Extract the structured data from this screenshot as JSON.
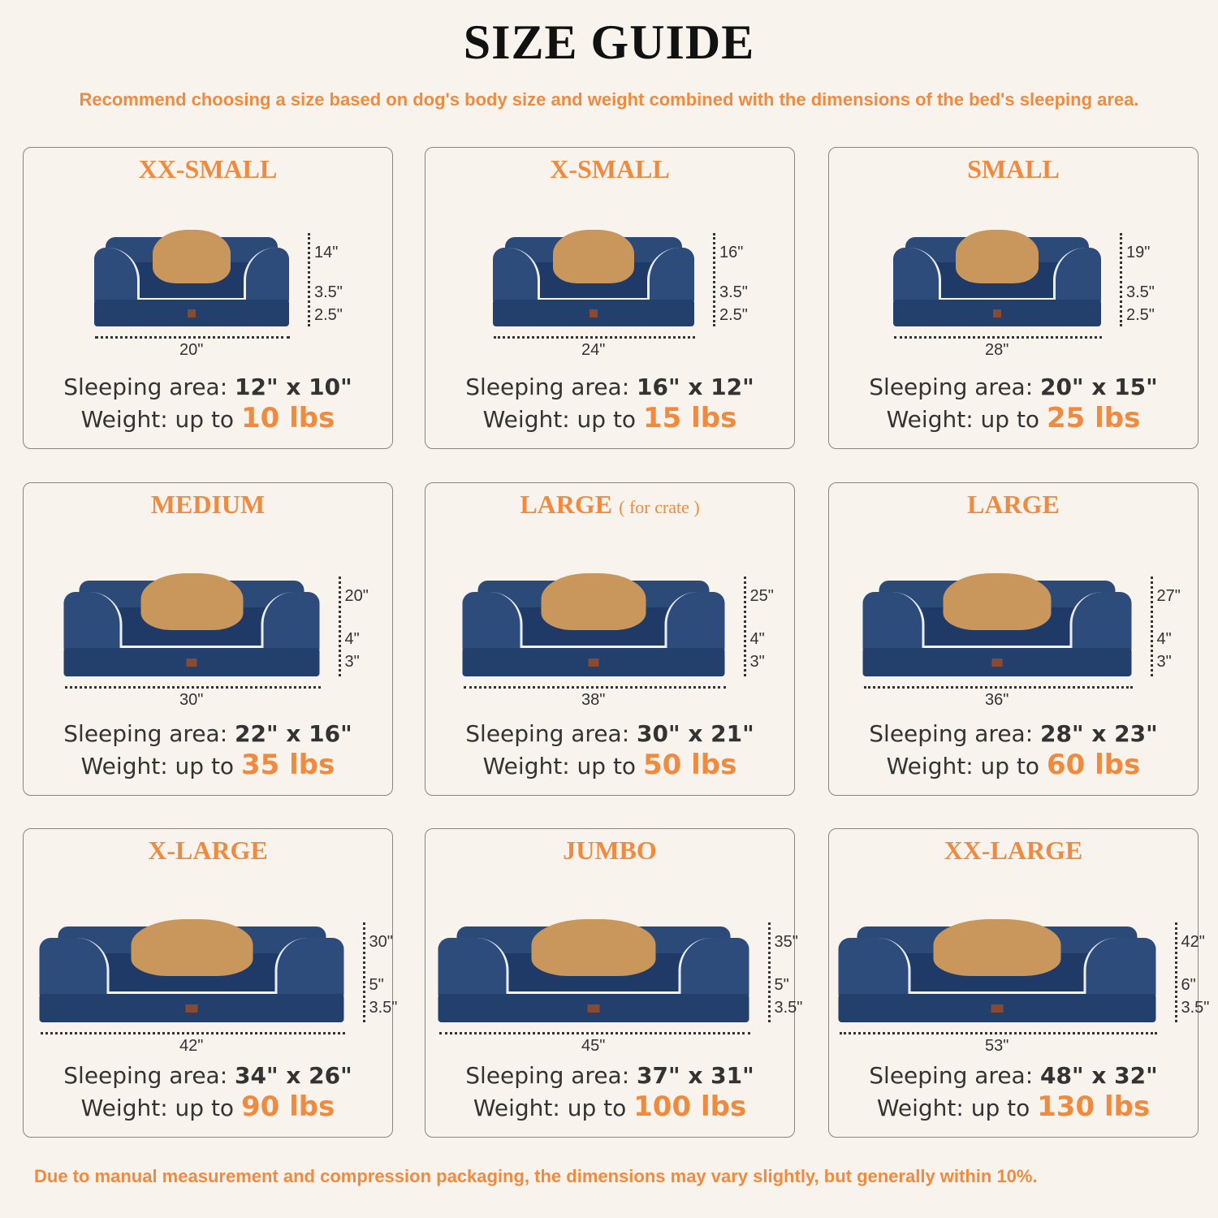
{
  "title": "SIZE GUIDE",
  "subtitle": "Recommend choosing a size based on dog's body size and weight combined with the dimensions of the bed's sleeping area.",
  "footer": "Due to manual measurement and compression packaging, the dimensions may vary slightly, but generally within 10%.",
  "colors": {
    "background": "#f9f3ee",
    "accent": "#ef8a3e",
    "bed": "#24406d"
  },
  "sleeping_label": "Sleeping area:",
  "weight_label": "Weight: up to",
  "cards": [
    {
      "title": "XX-SMALL",
      "note": "",
      "depth": "14\"",
      "bolster": "3.5\"",
      "base": "2.5\"",
      "width": "20\"",
      "sleeping": "12\" x 10\"",
      "weight": "10 lbs"
    },
    {
      "title": "X-SMALL",
      "note": "",
      "depth": "16\"",
      "bolster": "3.5\"",
      "base": "2.5\"",
      "width": "24\"",
      "sleeping": "16\" x 12\"",
      "weight": "15 lbs"
    },
    {
      "title": "SMALL",
      "note": "",
      "depth": "19\"",
      "bolster": "3.5\"",
      "base": "2.5\"",
      "width": "28\"",
      "sleeping": "20\" x 15\"",
      "weight": "25 lbs"
    },
    {
      "title": "MEDIUM",
      "note": "",
      "depth": "20\"",
      "bolster": "4\"",
      "base": "3\"",
      "width": "30\"",
      "sleeping": "22\" x 16\"",
      "weight": "35 lbs"
    },
    {
      "title": "LARGE",
      "note": "( for crate )",
      "depth": "25\"",
      "bolster": "4\"",
      "base": "3\"",
      "width": "38\"",
      "sleeping": "30\" x 21\"",
      "weight": "50 lbs"
    },
    {
      "title": "LARGE",
      "note": "",
      "depth": "27\"",
      "bolster": "4\"",
      "base": "3\"",
      "width": "36\"",
      "sleeping": "28\" x 23\"",
      "weight": "60 lbs"
    },
    {
      "title": "X-LARGE",
      "note": "",
      "depth": "30\"",
      "bolster": "5\"",
      "base": "3.5\"",
      "width": "42\"",
      "sleeping": "34\" x 26\"",
      "weight": "90 lbs"
    },
    {
      "title": "JUMBO",
      "note": "",
      "depth": "35\"",
      "bolster": "5\"",
      "base": "3.5\"",
      "width": "45\"",
      "sleeping": "37\" x 31\"",
      "weight": "100 lbs"
    },
    {
      "title": "XX-LARGE",
      "note": "",
      "depth": "42\"",
      "bolster": "6\"",
      "base": "3.5\"",
      "width": "53\"",
      "sleeping": "48\" x 32\"",
      "weight": "130 lbs"
    }
  ]
}
